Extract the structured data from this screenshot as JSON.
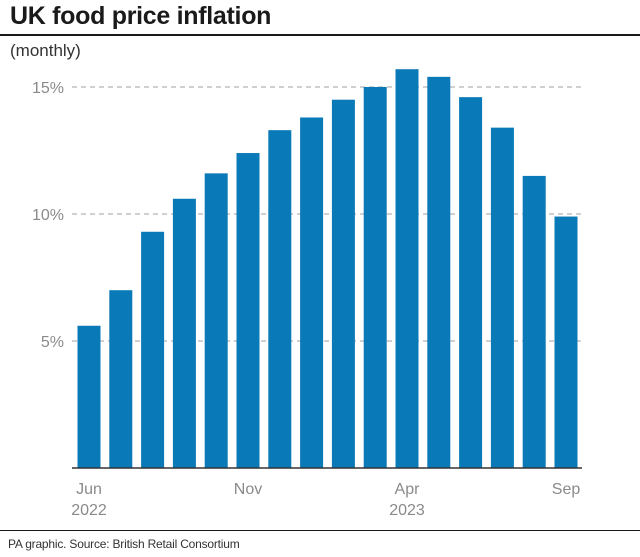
{
  "header": {
    "title": "UK food price inflation",
    "subtitle": "(monthly)"
  },
  "footer": {
    "credit": "PA graphic. Source: British Retail Consortium"
  },
  "colors": {
    "bar": "#0a79b8",
    "gridline": "#b4b4b4",
    "axis": "#333333",
    "tick_label": "#8a8a8a"
  },
  "chart_data": {
    "type": "bar",
    "title": "UK food price inflation",
    "subtitle": "(monthly)",
    "categories": [
      "Jun 2022",
      "Jul 2022",
      "Aug 2022",
      "Sep 2022",
      "Oct 2022",
      "Nov 2022",
      "Dec 2022",
      "Jan 2023",
      "Feb 2023",
      "Mar 2023",
      "Apr 2023",
      "May 2023",
      "Jun 2023",
      "Jul 2023",
      "Aug 2023",
      "Sep 2023"
    ],
    "values": [
      5.6,
      7.0,
      9.3,
      10.6,
      11.6,
      12.4,
      13.3,
      13.8,
      14.5,
      15.0,
      15.7,
      15.4,
      14.6,
      13.4,
      11.5,
      9.9
    ],
    "ylim": [
      0,
      16
    ],
    "yticks": [
      {
        "value": 5,
        "label": "5%"
      },
      {
        "value": 10,
        "label": "10%"
      },
      {
        "value": 15,
        "label": "15%"
      }
    ],
    "xticks": [
      {
        "index": 0,
        "lines": [
          "Jun",
          "2022"
        ]
      },
      {
        "index": 5,
        "lines": [
          "Nov"
        ]
      },
      {
        "index": 10,
        "lines": [
          "Apr",
          "2023"
        ]
      },
      {
        "index": 15,
        "lines": [
          "Sep"
        ]
      }
    ],
    "grid": "horizontal dashed",
    "legend": "none"
  }
}
